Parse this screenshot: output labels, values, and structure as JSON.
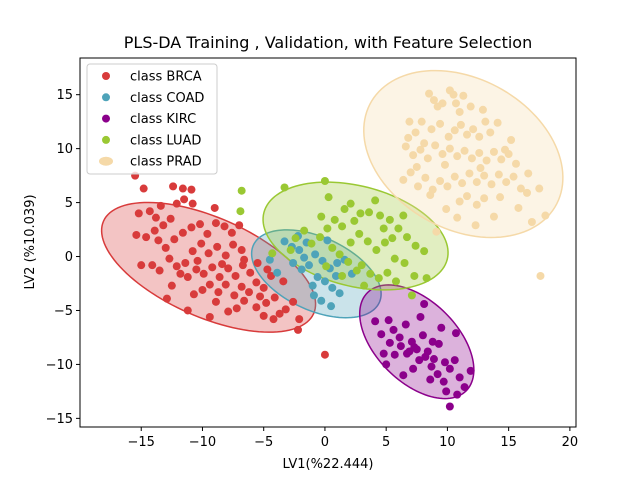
{
  "chart_data": {
    "type": "scatter",
    "title": "PLS-DA Training , Validation, with Feature Selection",
    "xlabel": "LV1(%22.444)",
    "ylabel": "LV2 (%10.039)",
    "xlim": [
      -20,
      20.5
    ],
    "ylim": [
      -15.8,
      18.4
    ],
    "xticks": [
      -15,
      -10,
      -5,
      0,
      5,
      10,
      15,
      20
    ],
    "yticks": [
      -15,
      -10,
      -5,
      0,
      5,
      10,
      15
    ],
    "grid": false,
    "legend_position": "top-left",
    "series": [
      {
        "name": "class BRCA",
        "color": "#d83b3b",
        "ellipse": {
          "center": [
            -9.5,
            -1.0
          ],
          "semi_major": 9.6,
          "semi_minor": 4.5,
          "angle_deg": -28
        },
        "points": [
          [
            -15.5,
            7.5
          ],
          [
            -14.8,
            6.3
          ],
          [
            -14.3,
            4.2
          ],
          [
            -15.2,
            4.0
          ],
          [
            -15.4,
            2.0
          ],
          [
            -14.6,
            1.8
          ],
          [
            -13.8,
            3.6
          ],
          [
            -13.2,
            2.9
          ],
          [
            -12.6,
            3.5
          ],
          [
            -12.1,
            4.9
          ],
          [
            -11.5,
            5.3
          ],
          [
            -10.8,
            4.9
          ],
          [
            -12.4,
            6.5
          ],
          [
            -11.6,
            6.3
          ],
          [
            -10.9,
            6.2
          ],
          [
            -13.6,
            1.5
          ],
          [
            -13.0,
            0.8
          ],
          [
            -12.3,
            1.6
          ],
          [
            -11.6,
            2.2
          ],
          [
            -10.9,
            2.7
          ],
          [
            -10.2,
            3.0
          ],
          [
            -9.6,
            2.1
          ],
          [
            -8.9,
            3.1
          ],
          [
            -8.2,
            2.8
          ],
          [
            -7.6,
            2.2
          ],
          [
            -14.1,
            -0.8
          ],
          [
            -13.5,
            -1.3
          ],
          [
            -12.7,
            -0.2
          ],
          [
            -12.1,
            -0.9
          ],
          [
            -11.4,
            -0.6
          ],
          [
            -10.8,
            0.5
          ],
          [
            -10.1,
            1.2
          ],
          [
            -9.5,
            0.3
          ],
          [
            -8.8,
            0.9
          ],
          [
            -8.1,
            0.1
          ],
          [
            -7.5,
            1.1
          ],
          [
            -6.8,
            0.6
          ],
          [
            -15.0,
            -0.8
          ],
          [
            -12.5,
            -2.7
          ],
          [
            -11.8,
            -1.6
          ],
          [
            -11.2,
            -1.9
          ],
          [
            -10.5,
            -1.2
          ],
          [
            -9.9,
            -1.6
          ],
          [
            -9.2,
            -1.0
          ],
          [
            -8.6,
            -1.9
          ],
          [
            -7.9,
            -1.1
          ],
          [
            -7.3,
            -1.8
          ],
          [
            -6.7,
            -0.8
          ],
          [
            -6.1,
            -1.5
          ],
          [
            -5.5,
            -0.6
          ],
          [
            -10.7,
            -3.5
          ],
          [
            -10.0,
            -3.1
          ],
          [
            -9.4,
            -2.6
          ],
          [
            -8.7,
            -3.3
          ],
          [
            -8.1,
            -2.6
          ],
          [
            -7.4,
            -3.6
          ],
          [
            -6.8,
            -2.8
          ],
          [
            -6.2,
            -3.3
          ],
          [
            -5.6,
            -2.4
          ],
          [
            -5.0,
            -2.9
          ],
          [
            -4.4,
            -1.8
          ],
          [
            -8.9,
            -4.2
          ],
          [
            -7.9,
            -5.1
          ],
          [
            -6.6,
            -4.1
          ],
          [
            -5.6,
            -4.7
          ],
          [
            -4.8,
            -4.3
          ],
          [
            -4.1,
            -3.8
          ],
          [
            -3.7,
            -5.3
          ],
          [
            -3.2,
            -4.9
          ],
          [
            -2.6,
            -4.2
          ],
          [
            -2.1,
            -5.8
          ],
          [
            -5.0,
            -5.5
          ],
          [
            -4.2,
            -5.8
          ],
          [
            -2.2,
            -6.8
          ],
          [
            -12.9,
            -3.9
          ],
          [
            -11.2,
            -5.0
          ],
          [
            -9.4,
            -5.6
          ],
          [
            -7.2,
            -4.8
          ],
          [
            -13.4,
            4.7
          ],
          [
            -9.0,
            4.5
          ],
          [
            -7.0,
            2.9
          ],
          [
            -6.6,
            -0.3
          ],
          [
            -13.9,
            2.4
          ],
          [
            -10.4,
            -0.4
          ],
          [
            -8.4,
            -0.7
          ],
          [
            -5.3,
            -3.7
          ],
          [
            -3.4,
            -2.3
          ],
          [
            -4.7,
            -1.2
          ],
          [
            0.0,
            -9.1
          ]
        ]
      },
      {
        "name": "class COAD",
        "color": "#4ea3b9",
        "ellipse": {
          "center": [
            -0.7,
            -1.6
          ],
          "semi_major": 5.8,
          "semi_minor": 3.3,
          "angle_deg": -30
        },
        "points": [
          [
            -3.3,
            1.4
          ],
          [
            -2.7,
            0.9
          ],
          [
            -2.1,
            0.6
          ],
          [
            -1.5,
            1.3
          ],
          [
            -0.8,
            0.2
          ],
          [
            -0.2,
            -0.4
          ],
          [
            0.4,
            -1.1
          ],
          [
            1.0,
            -0.6
          ],
          [
            1.6,
            -0.3
          ],
          [
            2.2,
            -1.6
          ],
          [
            -2.6,
            -0.6
          ],
          [
            -1.9,
            -1.2
          ],
          [
            -1.3,
            -0.8
          ],
          [
            -0.6,
            -1.9
          ],
          [
            0.0,
            -2.3
          ],
          [
            0.6,
            -2.9
          ],
          [
            1.2,
            -3.4
          ],
          [
            -0.9,
            -3.6
          ],
          [
            -0.3,
            -4.1
          ],
          [
            0.5,
            -4.6
          ],
          [
            -3.9,
            -1.5
          ],
          [
            -4.5,
            -0.3
          ],
          [
            -1.0,
            -2.7
          ],
          [
            0.9,
            -1.8
          ],
          [
            -2.2,
            1.9
          ],
          [
            0.2,
            1.5
          ],
          [
            -1.7,
            -0.1
          ]
        ]
      },
      {
        "name": "class KIRC",
        "color": "#8b008b",
        "ellipse": {
          "center": [
            7.5,
            -7.9
          ],
          "semi_major": 6.1,
          "semi_minor": 3.5,
          "angle_deg": -52
        },
        "points": [
          [
            4.1,
            -6.0
          ],
          [
            4.6,
            -7.2
          ],
          [
            5.2,
            -5.9
          ],
          [
            5.6,
            -6.8
          ],
          [
            6.1,
            -7.5
          ],
          [
            6.6,
            -6.3
          ],
          [
            7.1,
            -7.9
          ],
          [
            7.5,
            -8.6
          ],
          [
            8.0,
            -7.3
          ],
          [
            8.4,
            -8.8
          ],
          [
            8.9,
            -9.5
          ],
          [
            9.3,
            -8.1
          ],
          [
            9.8,
            -9.8
          ],
          [
            10.2,
            -10.4
          ],
          [
            10.6,
            -9.6
          ],
          [
            11.0,
            -11.2
          ],
          [
            11.4,
            -12.1
          ],
          [
            10.8,
            -12.8
          ],
          [
            10.2,
            -13.9
          ],
          [
            9.7,
            -11.6
          ],
          [
            9.2,
            -10.9
          ],
          [
            8.7,
            -10.2
          ],
          [
            8.2,
            -9.3
          ],
          [
            7.7,
            -9.6
          ],
          [
            7.2,
            -10.4
          ],
          [
            6.7,
            -9.0
          ],
          [
            6.2,
            -8.3
          ],
          [
            5.7,
            -9.1
          ],
          [
            5.3,
            -8.0
          ],
          [
            4.8,
            -9.0
          ],
          [
            8.1,
            -4.4
          ],
          [
            7.8,
            -5.6
          ],
          [
            10.7,
            -7.1
          ],
          [
            6.4,
            -11.0
          ],
          [
            9.5,
            -6.6
          ],
          [
            11.9,
            -10.6
          ],
          [
            5.0,
            -10.0
          ],
          [
            8.6,
            -11.4
          ],
          [
            7.3,
            -8.4
          ],
          [
            8.8,
            -7.9
          ],
          [
            9.9,
            -12.5
          ],
          [
            6.9,
            -8.8
          ]
        ]
      },
      {
        "name": "class LUAD",
        "color": "#9ac833",
        "ellipse": {
          "center": [
            2.5,
            1.9
          ],
          "semi_major": 7.8,
          "semi_minor": 4.6,
          "angle_deg": -18
        },
        "points": [
          [
            -6.8,
            6.1
          ],
          [
            -6.9,
            4.2
          ],
          [
            -3.3,
            6.4
          ],
          [
            0.0,
            7.0
          ],
          [
            0.3,
            5.5
          ],
          [
            2.1,
            4.9
          ],
          [
            4.1,
            5.2
          ],
          [
            3.6,
            4.1
          ],
          [
            4.5,
            3.8
          ],
          [
            5.3,
            3.4
          ],
          [
            6.0,
            2.6
          ],
          [
            6.7,
            1.8
          ],
          [
            7.4,
            1.0
          ],
          [
            8.1,
            0.5
          ],
          [
            8.3,
            -2.0
          ],
          [
            7.3,
            -1.8
          ],
          [
            6.5,
            -0.6
          ],
          [
            5.7,
            -0.2
          ],
          [
            4.9,
            1.3
          ],
          [
            4.2,
            0.6
          ],
          [
            3.5,
            1.4
          ],
          [
            2.8,
            2.1
          ],
          [
            2.1,
            1.3
          ],
          [
            1.4,
            2.8
          ],
          [
            0.8,
            3.4
          ],
          [
            0.2,
            2.6
          ],
          [
            -0.4,
            1.8
          ],
          [
            -1.1,
            1.2
          ],
          [
            -1.7,
            2.4
          ],
          [
            -2.4,
            1.7
          ],
          [
            3.0,
            -0.8
          ],
          [
            3.7,
            -1.6
          ],
          [
            4.4,
            -2.0
          ],
          [
            5.1,
            -1.5
          ],
          [
            5.8,
            -2.3
          ],
          [
            2.6,
            -1.3
          ],
          [
            1.9,
            -0.5
          ],
          [
            1.2,
            0.2
          ],
          [
            0.6,
            0.8
          ],
          [
            -0.3,
            3.7
          ],
          [
            1.6,
            4.4
          ],
          [
            2.4,
            3.3
          ],
          [
            4.8,
            2.6
          ],
          [
            6.4,
            3.8
          ],
          [
            7.1,
            -3.6
          ],
          [
            3.2,
            -2.7
          ],
          [
            1.4,
            -1.8
          ],
          [
            -2.8,
            0.6
          ],
          [
            -4.3,
            0.3
          ],
          [
            0.1,
            -0.9
          ],
          [
            2.9,
            4.0
          ],
          [
            5.5,
            1.7
          ]
        ]
      },
      {
        "name": "class PRAD",
        "color": "#f5d9a8",
        "ellipse": {
          "center": [
            11.3,
            9.5
          ],
          "semi_major": 9.0,
          "semi_minor": 6.7,
          "angle_deg": -40
        },
        "points": [
          [
            7.9,
            12.5
          ],
          [
            8.5,
            15.1
          ],
          [
            8.9,
            14.5
          ],
          [
            9.2,
            13.9
          ],
          [
            9.6,
            14.2
          ],
          [
            10.2,
            15.4
          ],
          [
            10.5,
            15.0
          ],
          [
            10.7,
            14.2
          ],
          [
            11.0,
            13.4
          ],
          [
            11.3,
            14.9
          ],
          [
            6.9,
            12.5
          ],
          [
            7.4,
            11.5
          ],
          [
            8.1,
            10.5
          ],
          [
            8.7,
            11.8
          ],
          [
            9.4,
            12.3
          ],
          [
            10.1,
            11.1
          ],
          [
            10.6,
            11.7
          ],
          [
            11.1,
            12.2
          ],
          [
            11.6,
            11.3
          ],
          [
            12.1,
            11.8
          ],
          [
            12.6,
            11.1
          ],
          [
            13.1,
            12.5
          ],
          [
            13.5,
            11.5
          ],
          [
            6.6,
            10.2
          ],
          [
            7.2,
            9.4
          ],
          [
            7.8,
            9.9
          ],
          [
            8.4,
            9.1
          ],
          [
            9.0,
            10.3
          ],
          [
            9.6,
            9.5
          ],
          [
            10.2,
            10.0
          ],
          [
            10.8,
            9.3
          ],
          [
            11.4,
            9.8
          ],
          [
            12.0,
            9.1
          ],
          [
            12.6,
            9.6
          ],
          [
            13.2,
            8.9
          ],
          [
            13.8,
            9.7
          ],
          [
            14.4,
            9.0
          ],
          [
            15.0,
            9.5
          ],
          [
            15.6,
            8.6
          ],
          [
            6.4,
            7.1
          ],
          [
            7.0,
            7.8
          ],
          [
            7.6,
            6.5
          ],
          [
            8.2,
            7.3
          ],
          [
            8.8,
            6.2
          ],
          [
            9.4,
            7.0
          ],
          [
            10.0,
            6.5
          ],
          [
            10.6,
            7.4
          ],
          [
            11.2,
            6.8
          ],
          [
            11.8,
            7.7
          ],
          [
            12.4,
            6.9
          ],
          [
            13.0,
            7.5
          ],
          [
            13.6,
            6.7
          ],
          [
            14.2,
            7.6
          ],
          [
            14.8,
            6.9
          ],
          [
            15.4,
            7.4
          ],
          [
            16.0,
            6.3
          ],
          [
            16.6,
            7.7
          ],
          [
            11.0,
            5.1
          ],
          [
            11.6,
            5.6
          ],
          [
            12.4,
            4.8
          ],
          [
            13.0,
            5.4
          ],
          [
            14.3,
            5.5
          ],
          [
            15.8,
            4.5
          ],
          [
            16.5,
            5.9
          ],
          [
            17.5,
            6.3
          ],
          [
            18.0,
            3.8
          ],
          [
            16.9,
            3.2
          ],
          [
            9.9,
            4.4
          ],
          [
            10.8,
            3.6
          ],
          [
            8.6,
            5.7
          ],
          [
            9.1,
            2.3
          ],
          [
            12.3,
            2.9
          ],
          [
            13.8,
            3.7
          ],
          [
            17.6,
            -1.8
          ],
          [
            15.2,
            10.8
          ],
          [
            14.1,
            12.4
          ],
          [
            12.9,
            13.6
          ],
          [
            9.8,
            8.5
          ],
          [
            7.5,
            8.3
          ],
          [
            12.7,
            8.2
          ],
          [
            6.8,
            11.0
          ],
          [
            11.9,
            13.9
          ],
          [
            14.7,
            9.9
          ]
        ]
      }
    ]
  }
}
